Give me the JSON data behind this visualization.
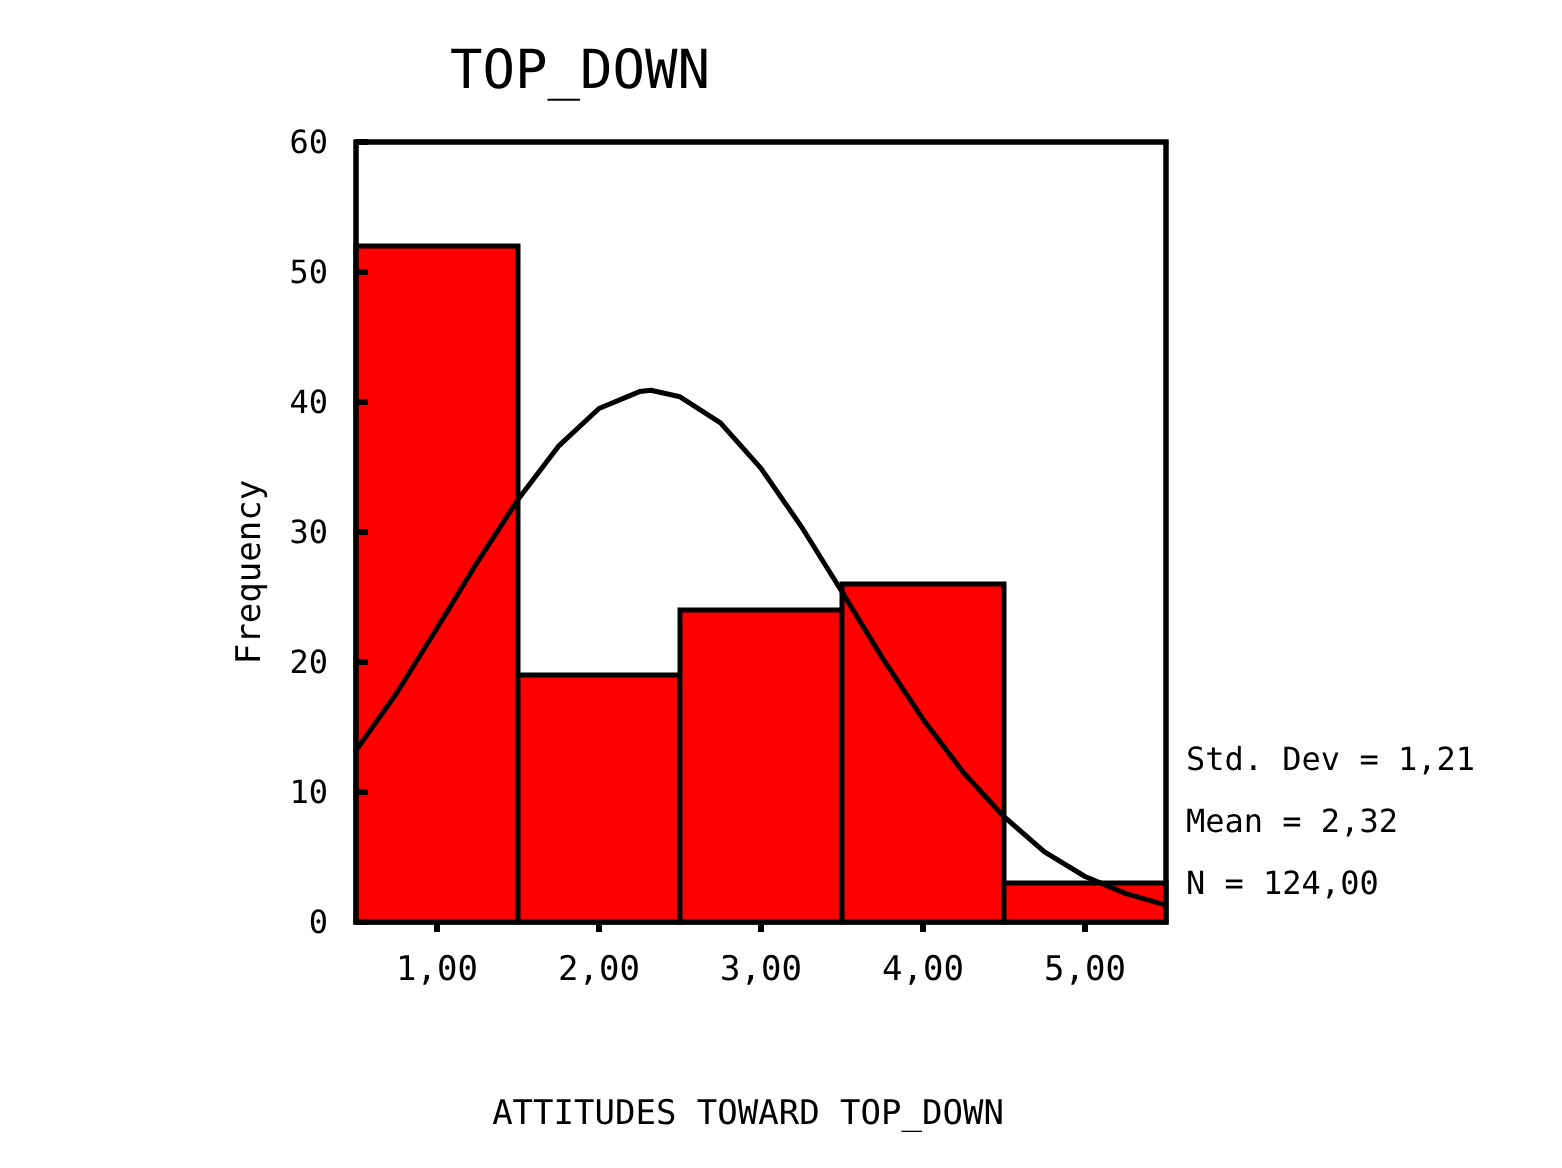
{
  "chart_data": {
    "type": "histogram",
    "title": "TOP_DOWN",
    "xlabel": "ATTITUDES TOWARD TOP_DOWN",
    "ylabel": "Frequency",
    "bins": [
      0.5,
      1.5,
      2.5,
      3.5,
      4.5,
      5.5
    ],
    "values": [
      52,
      19,
      24,
      26,
      3
    ],
    "color": "#ff0000",
    "series": [
      {
        "type": "line",
        "color": "#000000",
        "x": [
          0.5,
          0.75,
          1,
          1.25,
          1.5,
          1.75,
          2,
          2.25,
          2.32,
          2.5,
          2.75,
          3,
          3.25,
          3.5,
          3.75,
          4,
          4.25,
          4.5,
          4.75,
          5,
          5.25,
          5.5
        ],
        "values": [
          13.2,
          17.6,
          22.6,
          27.7,
          32.5,
          36.6,
          39.5,
          40.8,
          40.9,
          40.4,
          38.4,
          34.9,
          30.4,
          25.4,
          20.3,
          15.6,
          11.5,
          8.1,
          5.4,
          3.5,
          2.2,
          1.3
        ]
      }
    ],
    "xlim": [
      0.5,
      5.5
    ],
    "xticks": [
      {
        "value": 1,
        "label": "1,00"
      },
      {
        "value": 2,
        "label": "2,00"
      },
      {
        "value": 3,
        "label": "3,00"
      },
      {
        "value": 4,
        "label": "4,00"
      },
      {
        "value": 5,
        "label": "5,00"
      }
    ],
    "ylim": [
      0,
      60
    ],
    "yticks": [
      0,
      10,
      20,
      30,
      40,
      50,
      60
    ],
    "annotations": [
      "Std. Dev = 1,21",
      "Mean = 2,32",
      "N = 124,00"
    ]
  }
}
